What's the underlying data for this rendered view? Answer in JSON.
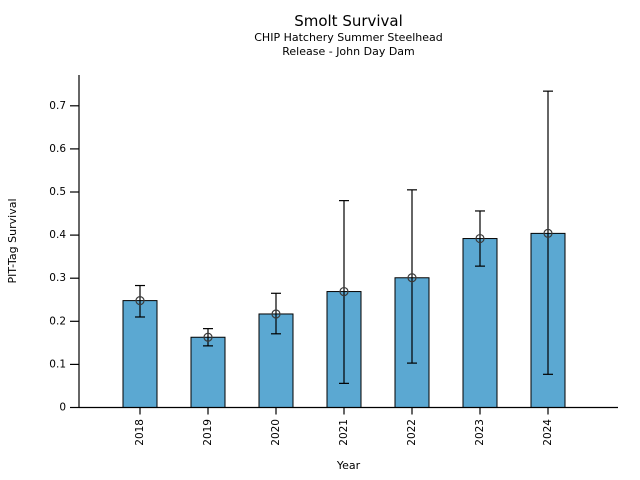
{
  "chart_data": {
    "type": "bar",
    "title": "Smolt Survival",
    "subtitle": [
      "CHIP Hatchery Summer Steelhead",
      "Release - John Day Dam"
    ],
    "xlabel": "Year",
    "ylabel": "PIT-Tag Survival",
    "categories": [
      "2018",
      "2019",
      "2020",
      "2021",
      "2022",
      "2023",
      "2024"
    ],
    "values": [
      0.248,
      0.163,
      0.217,
      0.269,
      0.301,
      0.392,
      0.404
    ],
    "error_low": [
      0.21,
      0.143,
      0.171,
      0.056,
      0.103,
      0.328,
      0.077
    ],
    "error_high": [
      0.283,
      0.183,
      0.265,
      0.48,
      0.505,
      0.456,
      0.734
    ],
    "ytick_values": [
      0,
      0.1,
      0.2,
      0.3,
      0.4,
      0.5,
      0.6,
      0.7
    ],
    "ytick_labels": [
      "0",
      "0.1",
      "0.2",
      "0.3",
      "0.4",
      "0.5",
      "0.6",
      "0.7"
    ],
    "ylim": [
      0,
      0.772
    ],
    "grid": false,
    "legend": "none",
    "xtick_rotation_deg": 90,
    "marker_style": "open-circle",
    "bar_color": "#5BA8D2",
    "bar_edge_color": "#000000",
    "errorbar_color": "#000000",
    "marker_edge_color": "#3a3a3a",
    "axis_color": "#000000",
    "text_color": "#000000",
    "background_color": "#ffffff"
  }
}
